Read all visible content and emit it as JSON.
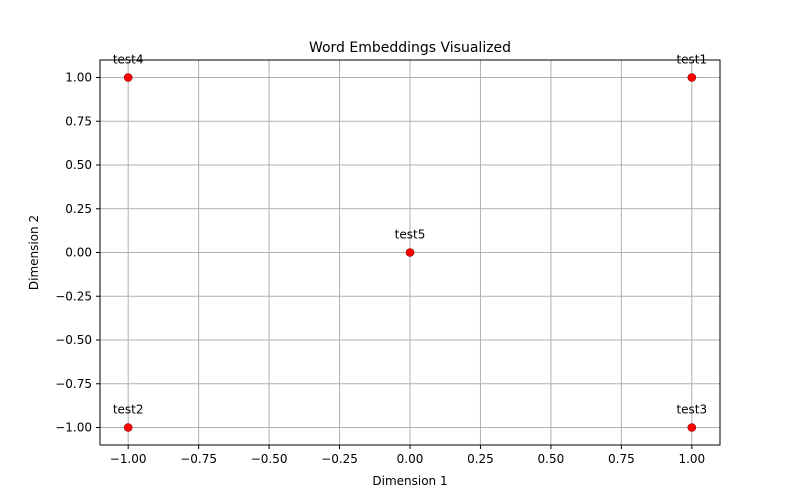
{
  "chart_data": {
    "type": "scatter",
    "title": "Word Embeddings Visualized",
    "xlabel": "Dimension 1",
    "ylabel": "Dimension 2",
    "xlim": [
      -1.1,
      1.1
    ],
    "ylim": [
      -1.1,
      1.1
    ],
    "xticks": [
      -1.0,
      -0.75,
      -0.5,
      -0.25,
      0.0,
      0.25,
      0.5,
      0.75,
      1.0
    ],
    "xtick_labels": [
      "−1.00",
      "−0.75",
      "−0.50",
      "−0.25",
      "0.00",
      "0.25",
      "0.50",
      "0.75",
      "1.00"
    ],
    "yticks": [
      -1.0,
      -0.75,
      -0.5,
      -0.25,
      0.0,
      0.25,
      0.5,
      0.75,
      1.0
    ],
    "ytick_labels": [
      "−1.00",
      "−0.75",
      "−0.50",
      "−0.25",
      "0.00",
      "0.25",
      "0.50",
      "0.75",
      "1.00"
    ],
    "grid": true,
    "marker_color": "#ff0000",
    "points": [
      {
        "label": "test1",
        "x": 1.0,
        "y": 1.0
      },
      {
        "label": "test2",
        "x": -1.0,
        "y": -1.0
      },
      {
        "label": "test3",
        "x": 1.0,
        "y": -1.0
      },
      {
        "label": "test4",
        "x": -1.0,
        "y": 1.0
      },
      {
        "label": "test5",
        "x": 0.0,
        "y": 0.0
      }
    ]
  }
}
